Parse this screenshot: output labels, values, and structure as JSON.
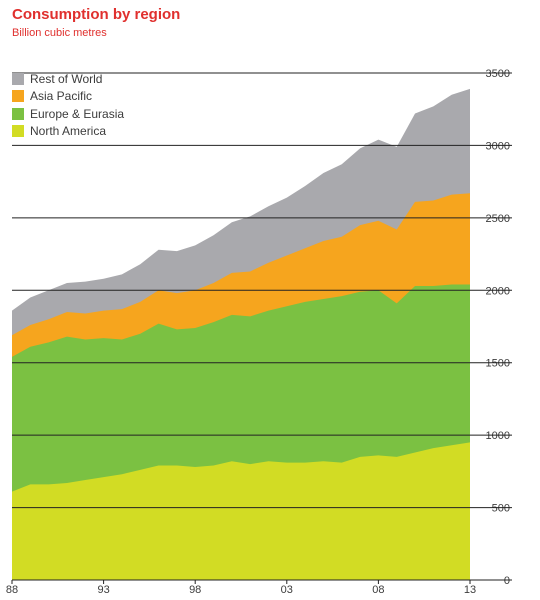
{
  "chart_data": {
    "type": "area",
    "title": "Consumption by region",
    "subtitle": "Billion cubic metres",
    "x": [
      1988,
      1989,
      1990,
      1991,
      1992,
      1993,
      1994,
      1995,
      1996,
      1997,
      1998,
      1999,
      2000,
      2001,
      2002,
      2003,
      2004,
      2005,
      2006,
      2007,
      2008,
      2009,
      2010,
      2011,
      2012,
      2013
    ],
    "x_tick_labels": [
      "88",
      "93",
      "98",
      "03",
      "08",
      "13"
    ],
    "x_tick_values": [
      1988,
      1993,
      1998,
      2003,
      2008,
      2013
    ],
    "y_tick_labels": [
      "0",
      "500",
      "1000",
      "1500",
      "2000",
      "2500",
      "3000",
      "3500"
    ],
    "ylim": [
      0,
      3500
    ],
    "stacked": true,
    "legend_position": "top-left",
    "series": [
      {
        "name": "North America",
        "color": "#d2dc24",
        "values": [
          610,
          660,
          660,
          670,
          690,
          710,
          730,
          760,
          790,
          790,
          780,
          790,
          820,
          800,
          820,
          810,
          810,
          820,
          810,
          850,
          860,
          850,
          880,
          910,
          930,
          950
        ]
      },
      {
        "name": "Europe & Eurasia",
        "color": "#7bc142",
        "values": [
          930,
          950,
          980,
          1010,
          970,
          960,
          930,
          940,
          980,
          940,
          960,
          990,
          1010,
          1020,
          1040,
          1080,
          1110,
          1120,
          1150,
          1140,
          1140,
          1060,
          1150,
          1120,
          1110,
          1090
        ]
      },
      {
        "name": "Asia Pacific",
        "color": "#f6a51e",
        "values": [
          150,
          150,
          160,
          170,
          180,
          190,
          210,
          220,
          230,
          250,
          260,
          270,
          290,
          310,
          330,
          350,
          370,
          400,
          410,
          460,
          480,
          510,
          580,
          590,
          620,
          630
        ]
      },
      {
        "name": "Rest of World",
        "color": "#a9a9ad",
        "values": [
          170,
          190,
          200,
          200,
          220,
          220,
          240,
          260,
          280,
          290,
          310,
          330,
          350,
          380,
          390,
          400,
          430,
          470,
          500,
          530,
          560,
          570,
          610,
          650,
          690,
          720
        ]
      }
    ],
    "legend_order": [
      "Rest of World",
      "Asia Pacific",
      "Europe & Eurasia",
      "North America"
    ]
  }
}
